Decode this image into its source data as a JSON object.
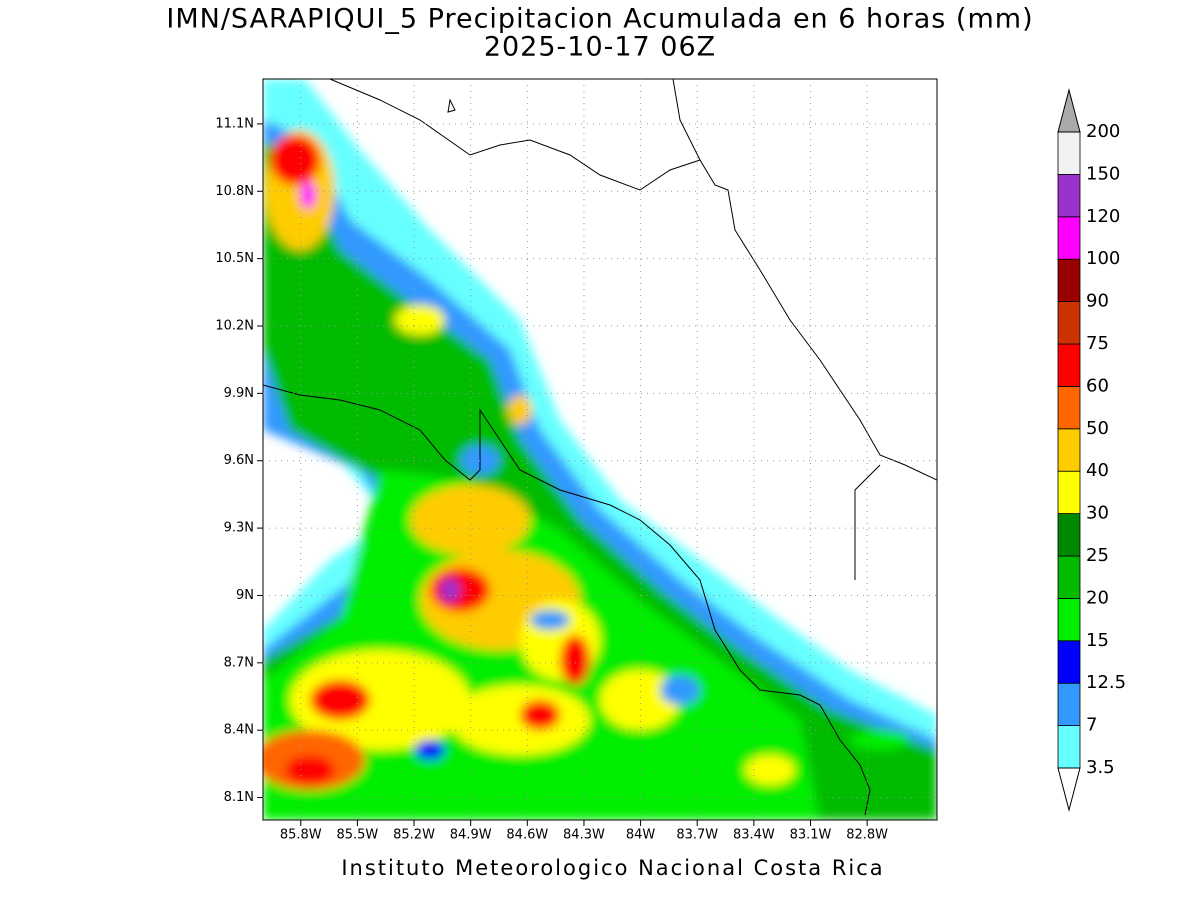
{
  "title": "IMN/SARAPIQUI_5 Precipitacion Acumulada en 6 horas (mm)",
  "subtitle": "2025-10-17 06Z",
  "footer": "Instituto Meteorologico Nacional Costa Rica",
  "map": {
    "lonlim": [
      -86.0,
      -82.43
    ],
    "latlim": [
      8.0,
      11.3
    ],
    "lon_ticks": [
      {
        "value": -85.8,
        "label": "85.8W"
      },
      {
        "value": -85.5,
        "label": "85.5W"
      },
      {
        "value": -85.2,
        "label": "85.2W"
      },
      {
        "value": -84.9,
        "label": "84.9W"
      },
      {
        "value": -84.6,
        "label": "84.6W"
      },
      {
        "value": -84.3,
        "label": "84.3W"
      },
      {
        "value": -84.0,
        "label": "84W"
      },
      {
        "value": -83.7,
        "label": "83.7W"
      },
      {
        "value": -83.4,
        "label": "83.4W"
      },
      {
        "value": -83.1,
        "label": "83.1W"
      },
      {
        "value": -82.8,
        "label": "82.8W"
      }
    ],
    "lat_ticks": [
      {
        "value": 11.1,
        "label": "11.1N"
      },
      {
        "value": 10.8,
        "label": "10.8N"
      },
      {
        "value": 10.5,
        "label": "10.5N"
      },
      {
        "value": 10.2,
        "label": "10.2N"
      },
      {
        "value": 9.9,
        "label": "9.9N"
      },
      {
        "value": 9.6,
        "label": "9.6N"
      },
      {
        "value": 9.3,
        "label": "9.3N"
      },
      {
        "value": 9.0,
        "label": "9N"
      },
      {
        "value": 8.7,
        "label": "8.7N"
      },
      {
        "value": 8.4,
        "label": "8.4N"
      },
      {
        "value": 8.1,
        "label": "8.1N"
      }
    ],
    "grid": true
  },
  "colorbar": {
    "levels": [
      3.5,
      7,
      12.5,
      15,
      20,
      25,
      30,
      40,
      50,
      60,
      75,
      90,
      100,
      120,
      150,
      200
    ],
    "colors": [
      "#66ffff",
      "#3399ff",
      "#0000ff",
      "#00ee00",
      "#00bb00",
      "#008800",
      "#ffff00",
      "#ffcc00",
      "#ff6600",
      "#ff0000",
      "#cc3300",
      "#990000",
      "#ff00ff",
      "#9933cc",
      "#f2f2f2"
    ],
    "over_color": "#aaaaaa",
    "under_color": "#ffffff"
  }
}
